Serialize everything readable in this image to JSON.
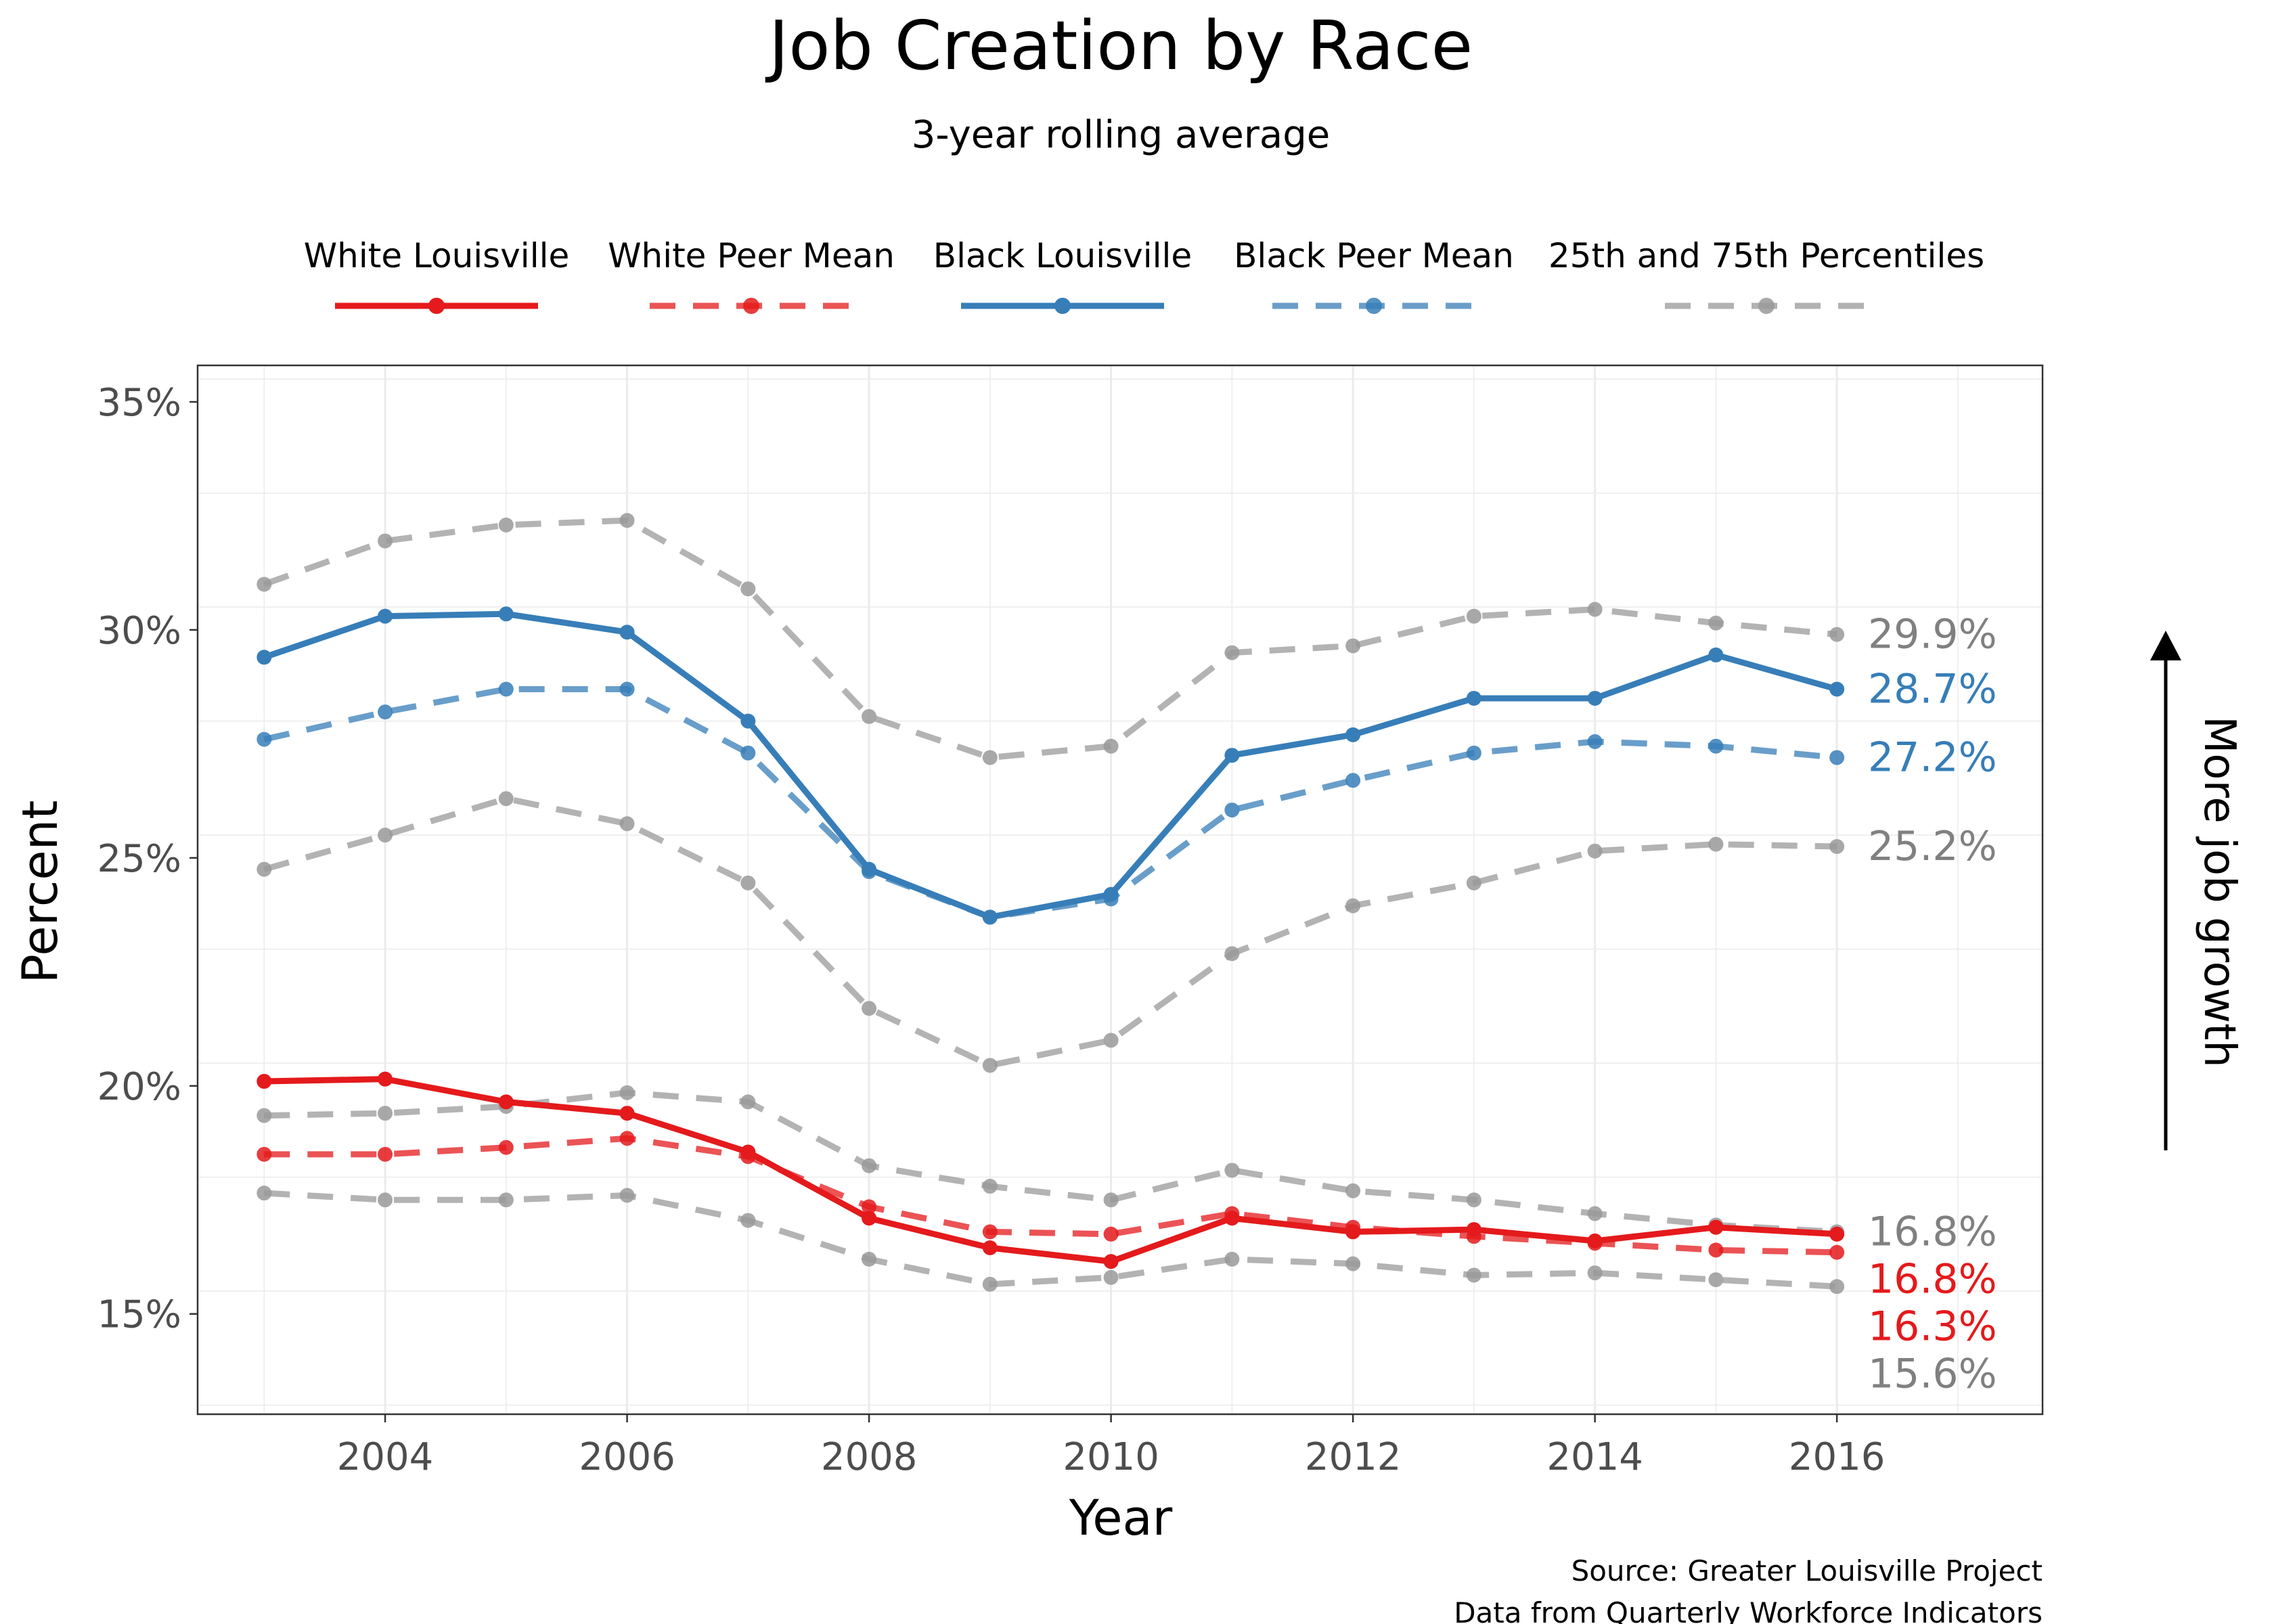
{
  "chart_data": {
    "type": "line",
    "title": "Job Creation by Race",
    "subtitle": "3-year rolling average",
    "xlabel": "Year",
    "ylabel": "Percent",
    "annotation": "More job growth",
    "caption": [
      "Source: Greater Louisville Project",
      "Data from Quarterly Workforce Indicators"
    ],
    "legend_position": "top",
    "grid": true,
    "x": [
      2003,
      2004,
      2005,
      2006,
      2007,
      2008,
      2009,
      2010,
      2011,
      2012,
      2013,
      2014,
      2015,
      2016
    ],
    "xlim": [
      2002.45,
      2017.7
    ],
    "ylim": [
      12.8,
      35.8
    ],
    "x_ticks": [
      {
        "value": 2004,
        "label": "2004"
      },
      {
        "value": 2006,
        "label": "2006"
      },
      {
        "value": 2008,
        "label": "2008"
      },
      {
        "value": 2010,
        "label": "2010"
      },
      {
        "value": 2012,
        "label": "2012"
      },
      {
        "value": 2014,
        "label": "2014"
      },
      {
        "value": 2016,
        "label": "2016"
      }
    ],
    "y_ticks": [
      {
        "value": 15,
        "label": "15%"
      },
      {
        "value": 20,
        "label": "20%"
      },
      {
        "value": 25,
        "label": "25%"
      },
      {
        "value": 30,
        "label": "30%"
      },
      {
        "value": 35,
        "label": "35%"
      }
    ],
    "legend": [
      {
        "label": "White Louisville",
        "color": "#E41A1C",
        "dashed": false
      },
      {
        "label": "White Peer Mean",
        "color": "#E41A1C",
        "dashed": true
      },
      {
        "label": "Black Louisville",
        "color": "#377EB8",
        "dashed": false
      },
      {
        "label": "Black Peer Mean",
        "color": "#377EB8",
        "dashed": true
      },
      {
        "label": "25th and 75th Percentiles",
        "color": "#999999",
        "dashed": true
      }
    ],
    "series": [
      {
        "name": "Black 75th Percentile",
        "color": "#999999",
        "style": "dashed",
        "values": [
          31.0,
          31.95,
          32.3,
          32.4,
          30.9,
          28.1,
          27.2,
          27.45,
          29.5,
          29.65,
          30.3,
          30.45,
          30.15,
          29.9
        ],
        "end_label": "29.9%"
      },
      {
        "name": "Black 25th Percentile",
        "color": "#999999",
        "style": "dashed",
        "values": [
          24.75,
          25.5,
          26.3,
          25.75,
          24.45,
          21.7,
          20.45,
          21.0,
          22.9,
          23.95,
          24.45,
          25.15,
          25.3,
          25.25
        ],
        "end_label": "25.2%"
      },
      {
        "name": "White 75th Percentile",
        "color": "#999999",
        "style": "dashed",
        "values": [
          19.35,
          19.4,
          19.55,
          19.85,
          19.65,
          18.25,
          17.8,
          17.5,
          18.15,
          17.7,
          17.5,
          17.2,
          16.95,
          16.8
        ],
        "end_label": "16.8%"
      },
      {
        "name": "White 25th Percentile",
        "color": "#999999",
        "style": "dashed",
        "values": [
          17.65,
          17.5,
          17.5,
          17.6,
          17.05,
          16.2,
          15.65,
          15.8,
          16.2,
          16.1,
          15.85,
          15.9,
          15.75,
          15.6
        ],
        "end_label": "15.6%"
      },
      {
        "name": "Black Peer Mean",
        "color": "#377EB8",
        "style": "dashed",
        "values": [
          27.6,
          28.2,
          28.7,
          28.7,
          27.3,
          24.7,
          23.7,
          24.1,
          26.05,
          26.7,
          27.3,
          27.55,
          27.45,
          27.2
        ],
        "end_label": "27.2%"
      },
      {
        "name": "White Peer Mean",
        "color": "#E41A1C",
        "style": "dashed",
        "values": [
          18.5,
          18.5,
          18.65,
          18.85,
          18.45,
          17.35,
          16.8,
          16.75,
          17.2,
          16.9,
          16.7,
          16.55,
          16.4,
          16.35
        ],
        "end_label": "16.3%"
      },
      {
        "name": "Black Louisville",
        "color": "#377EB8",
        "style": "solid",
        "values": [
          29.4,
          30.3,
          30.35,
          29.95,
          28.0,
          24.75,
          23.7,
          24.2,
          27.25,
          27.7,
          28.5,
          28.5,
          29.45,
          28.7
        ],
        "end_label": "28.7%"
      },
      {
        "name": "White Louisville",
        "color": "#E41A1C",
        "style": "solid",
        "values": [
          20.1,
          20.15,
          19.65,
          19.4,
          18.55,
          17.1,
          16.45,
          16.15,
          17.1,
          16.8,
          16.85,
          16.6,
          16.9,
          16.75
        ],
        "end_label": "16.8%"
      }
    ]
  }
}
